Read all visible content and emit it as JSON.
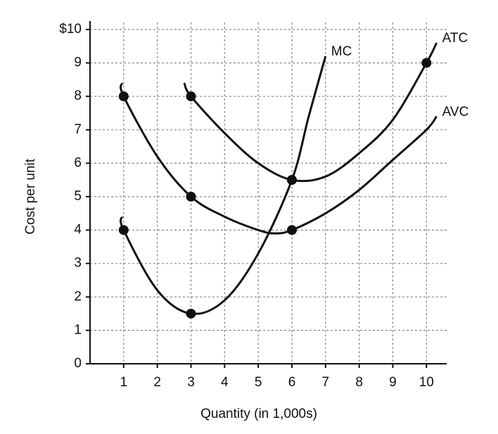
{
  "chart_data": {
    "type": "line",
    "xlabel": "Quantity (in 1,000s)",
    "ylabel": "Cost per unit",
    "xlim": [
      0,
      10.6
    ],
    "ylim": [
      0,
      10
    ],
    "xticks": [
      1,
      2,
      3,
      4,
      5,
      6,
      7,
      8,
      9,
      10
    ],
    "yticks": [
      0,
      1,
      2,
      3,
      4,
      5,
      6,
      7,
      8,
      9,
      {
        "value": 10,
        "label": "$10"
      }
    ],
    "grid": true,
    "series": [
      {
        "name": "AVC",
        "color": "#111111",
        "x": [
          0.95,
          1,
          2,
          3,
          4,
          5,
          5.5,
          6,
          7,
          8,
          9,
          10,
          10.3
        ],
        "values": [
          8.4,
          8,
          6.2,
          5,
          4.4,
          4,
          3.9,
          4,
          4.5,
          5.2,
          6.1,
          7,
          7.4
        ],
        "markers": [
          [
            1,
            8
          ],
          [
            3,
            5
          ],
          [
            6,
            4
          ]
        ]
      },
      {
        "name": "ATC",
        "color": "#111111",
        "x": [
          2.8,
          3,
          4,
          5,
          6,
          7,
          8,
          9,
          10,
          10.3
        ],
        "values": [
          8.4,
          8,
          6.9,
          6,
          5.5,
          5.6,
          6.3,
          7.3,
          9,
          9.6
        ],
        "markers": [
          [
            3,
            8
          ],
          [
            6,
            5.5
          ],
          [
            10,
            9
          ]
        ]
      },
      {
        "name": "MC",
        "color": "#111111",
        "x": [
          0.95,
          1,
          2,
          3,
          4,
          5,
          6,
          6.5,
          7
        ],
        "values": [
          4.4,
          4,
          2.2,
          1.5,
          1.9,
          3.3,
          5.5,
          7.4,
          9.2
        ],
        "markers": [
          [
            1,
            4
          ],
          [
            3,
            1.5
          ],
          [
            6,
            5.5
          ]
        ]
      }
    ]
  }
}
